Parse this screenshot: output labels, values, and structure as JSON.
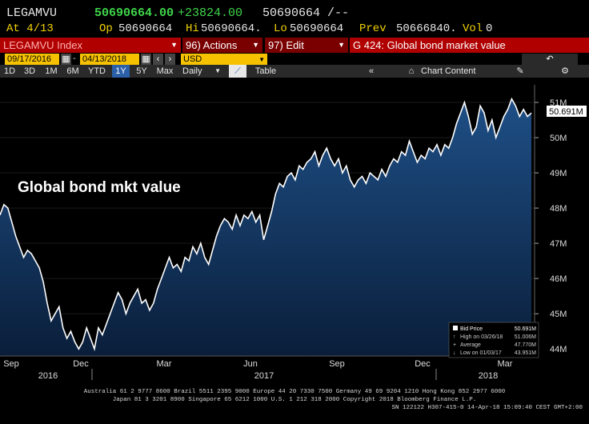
{
  "quote": {
    "ticker": "LEGAMVU",
    "last": "50690664.00",
    "change": "+23824.00",
    "bidask": "50690664 /--",
    "at_label": "At 4/13",
    "op_label": "Op",
    "op_value": "50690664",
    "hi_label": "Hi",
    "hi_value": "50690664.",
    "lo_label": "Lo",
    "lo_value": "50690664",
    "prev_label": "Prev",
    "prev_value": "50666840.",
    "vol_label": "Vol",
    "vol_value": "0"
  },
  "menubar": {
    "index_label": "LEGAMVU Index",
    "actions_label": "96) Actions",
    "edit_label": "97) Edit",
    "page_title": "G 424: Global bond market value"
  },
  "daterow": {
    "start_date": "09/17/2016",
    "end_date": "04/13/2018",
    "currency": "USD"
  },
  "toolbar": {
    "periods": [
      "1D",
      "3D",
      "1M",
      "6M",
      "YTD",
      "1Y",
      "5Y",
      "Max"
    ],
    "active_period": "1Y",
    "frequency": "Daily",
    "table_label": "Table",
    "chart_content_label": "Chart Content"
  },
  "chart_data": {
    "type": "area",
    "annotation": "Global bond mkt value",
    "y_unit": "M",
    "ylim": [
      43.8,
      51.5
    ],
    "y_ticks": [
      "51M",
      "50M",
      "49M",
      "48M",
      "47M",
      "46M",
      "45M",
      "44M"
    ],
    "last_value_label": "50.691M",
    "x_month_labels": [
      "Sep",
      "Dec",
      "Mar",
      "Jun",
      "Sep",
      "Dec",
      "Mar"
    ],
    "x_year_labels": [
      "2016",
      "2017",
      "2018"
    ],
    "series": [
      {
        "values": [
          47.8,
          48.1,
          48.0,
          47.6,
          47.2,
          46.9,
          46.6,
          46.8,
          46.7,
          46.5,
          46.3,
          45.9,
          45.3,
          44.8,
          45.0,
          45.2,
          44.6,
          44.3,
          44.5,
          44.2,
          44.0,
          44.2,
          44.6,
          44.3,
          44.0,
          44.6,
          44.4,
          44.7,
          45.0,
          45.3,
          45.6,
          45.4,
          45.0,
          45.3,
          45.5,
          45.7,
          45.3,
          45.4,
          45.1,
          45.3,
          45.7,
          46.0,
          46.3,
          46.6,
          46.3,
          46.4,
          46.2,
          46.6,
          46.5,
          46.9,
          46.7,
          47.0,
          46.6,
          46.4,
          46.8,
          47.2,
          47.5,
          47.7,
          47.6,
          47.4,
          47.8,
          47.5,
          47.8,
          47.7,
          47.9,
          47.6,
          47.8,
          47.1,
          47.5,
          47.9,
          48.4,
          48.7,
          48.6,
          48.9,
          49.0,
          48.8,
          49.2,
          49.1,
          49.3,
          49.4,
          49.6,
          49.2,
          49.5,
          49.7,
          49.4,
          49.2,
          49.4,
          49.0,
          49.2,
          48.8,
          48.6,
          48.8,
          48.9,
          48.7,
          49.0,
          48.9,
          48.8,
          49.1,
          48.9,
          49.2,
          49.4,
          49.3,
          49.6,
          49.5,
          49.9,
          49.6,
          49.3,
          49.5,
          49.4,
          49.7,
          49.6,
          49.8,
          49.5,
          49.8,
          49.7,
          50.0,
          50.4,
          50.7,
          51.0,
          50.6,
          50.1,
          50.3,
          50.9,
          50.7,
          50.2,
          50.5,
          50.0,
          50.3,
          50.6,
          50.8,
          51.1,
          50.9,
          50.6,
          50.8,
          50.6,
          50.7
        ]
      }
    ],
    "legend": {
      "title": "Bid Price",
      "title_value": "50.691M",
      "rows": [
        {
          "label": "High on 03/26/18",
          "value": "51.006M"
        },
        {
          "label": "Average",
          "value": "47.770M"
        },
        {
          "label": "Low on 01/03/17",
          "value": "43.951M"
        }
      ]
    },
    "colors": {
      "line": "#ffffff",
      "fill_top": "#1e4f86",
      "fill_bottom": "#0a1e3a",
      "last_value_bg": "#ffffff"
    }
  },
  "footer": {
    "line1": "Australia 61 2 9777 8600 Brazil 5511 2395 9000 Europe 44 20 7330 7500 Germany 49 69 9204 1210 Hong Kong 852 2977 6000",
    "line2": "Japan 81 3 3201 8900      Singapore 65 6212 1000      U.S. 1 212 318 2000             Copyright 2018 Bloomberg Finance L.P.",
    "line3": "SN 122122 H307-415-0 14-Apr-18 15:09:40 CEST GMT+2:00"
  }
}
